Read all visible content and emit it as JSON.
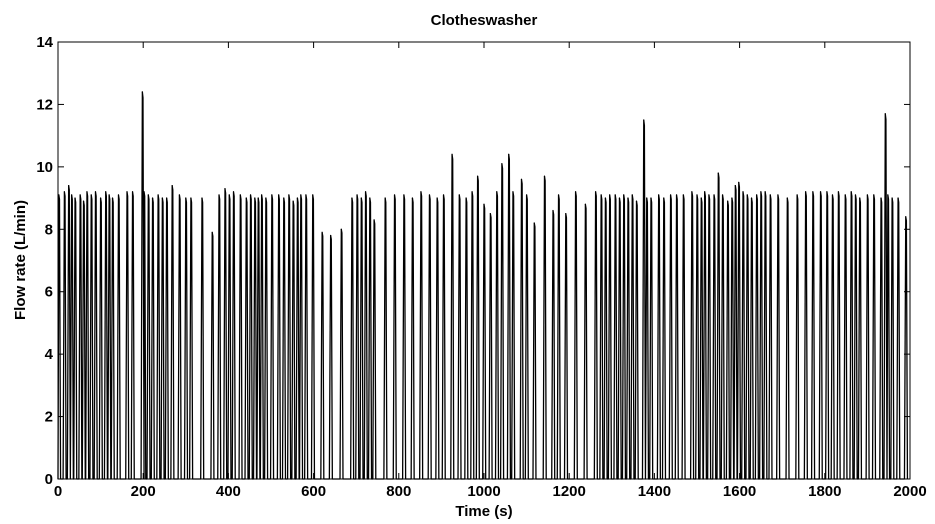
{
  "chart_data": {
    "type": "line",
    "title": "Clotheswasher",
    "xlabel": "Time (s)",
    "ylabel": "Flow rate (L/min)",
    "xlim": [
      0,
      2000
    ],
    "ylim": [
      0,
      14
    ],
    "xticks": [
      0,
      200,
      400,
      600,
      800,
      1000,
      1200,
      1400,
      1600,
      1800,
      2000
    ],
    "yticks": [
      0,
      2,
      4,
      6,
      8,
      10,
      12,
      14
    ],
    "grid": false,
    "legend": "none",
    "series": [
      {
        "color": "#000000",
        "peaks": [
          [
            2,
            9.1
          ],
          [
            15,
            9.2
          ],
          [
            25,
            9.4
          ],
          [
            32,
            9.1
          ],
          [
            40,
            9.0
          ],
          [
            52,
            9.1
          ],
          [
            60,
            8.9
          ],
          [
            68,
            9.2
          ],
          [
            78,
            9.1
          ],
          [
            88,
            9.2
          ],
          [
            100,
            9.0
          ],
          [
            112,
            9.2
          ],
          [
            120,
            9.1
          ],
          [
            128,
            9.0
          ],
          [
            142,
            9.1
          ],
          [
            162,
            9.2
          ],
          [
            175,
            9.2
          ],
          [
            198,
            12.4
          ],
          [
            202,
            9.2
          ],
          [
            212,
            9.1
          ],
          [
            222,
            9.0
          ],
          [
            235,
            9.1
          ],
          [
            245,
            9.0
          ],
          [
            255,
            9.0
          ],
          [
            268,
            9.4
          ],
          [
            285,
            9.1
          ],
          [
            300,
            9.0
          ],
          [
            312,
            9.0
          ],
          [
            338,
            9.0
          ],
          [
            362,
            7.9
          ],
          [
            378,
            9.1
          ],
          [
            392,
            9.3
          ],
          [
            402,
            9.1
          ],
          [
            412,
            9.2
          ],
          [
            428,
            9.1
          ],
          [
            442,
            9.0
          ],
          [
            452,
            9.1
          ],
          [
            462,
            9.0
          ],
          [
            470,
            9.0
          ],
          [
            478,
            9.1
          ],
          [
            488,
            9.0
          ],
          [
            502,
            9.1
          ],
          [
            518,
            9.1
          ],
          [
            530,
            9.0
          ],
          [
            542,
            9.1
          ],
          [
            552,
            8.9
          ],
          [
            562,
            9.0
          ],
          [
            570,
            9.1
          ],
          [
            582,
            9.1
          ],
          [
            598,
            9.1
          ],
          [
            620,
            7.9
          ],
          [
            640,
            7.8
          ],
          [
            665,
            8.0
          ],
          [
            690,
            9.0
          ],
          [
            702,
            9.1
          ],
          [
            712,
            9.0
          ],
          [
            722,
            9.2
          ],
          [
            732,
            9.0
          ],
          [
            742,
            8.3
          ],
          [
            768,
            9.0
          ],
          [
            790,
            9.1
          ],
          [
            812,
            9.1
          ],
          [
            832,
            9.0
          ],
          [
            852,
            9.2
          ],
          [
            872,
            9.1
          ],
          [
            890,
            9.0
          ],
          [
            905,
            9.1
          ],
          [
            925,
            10.4
          ],
          [
            942,
            9.1
          ],
          [
            958,
            9.0
          ],
          [
            972,
            9.2
          ],
          [
            985,
            9.7
          ],
          [
            1000,
            8.8
          ],
          [
            1015,
            8.5
          ],
          [
            1030,
            9.2
          ],
          [
            1042,
            10.1
          ],
          [
            1058,
            10.4
          ],
          [
            1068,
            9.2
          ],
          [
            1088,
            9.6
          ],
          [
            1100,
            9.1
          ],
          [
            1118,
            8.2
          ],
          [
            1142,
            9.7
          ],
          [
            1162,
            8.6
          ],
          [
            1175,
            9.1
          ],
          [
            1192,
            8.5
          ],
          [
            1215,
            9.2
          ],
          [
            1238,
            8.8
          ],
          [
            1262,
            9.2
          ],
          [
            1275,
            9.1
          ],
          [
            1285,
            9.0
          ],
          [
            1295,
            9.1
          ],
          [
            1308,
            9.1
          ],
          [
            1318,
            9.0
          ],
          [
            1328,
            9.1
          ],
          [
            1338,
            9.0
          ],
          [
            1348,
            9.1
          ],
          [
            1358,
            8.9
          ],
          [
            1375,
            11.5
          ],
          [
            1382,
            9.0
          ],
          [
            1392,
            9.0
          ],
          [
            1410,
            9.1
          ],
          [
            1422,
            9.0
          ],
          [
            1438,
            9.1
          ],
          [
            1452,
            9.1
          ],
          [
            1468,
            9.1
          ],
          [
            1488,
            9.2
          ],
          [
            1500,
            9.1
          ],
          [
            1510,
            9.0
          ],
          [
            1518,
            9.2
          ],
          [
            1528,
            9.1
          ],
          [
            1540,
            9.1
          ],
          [
            1550,
            9.8
          ],
          [
            1560,
            9.1
          ],
          [
            1572,
            8.9
          ],
          [
            1582,
            9.0
          ],
          [
            1590,
            9.4
          ],
          [
            1598,
            9.5
          ],
          [
            1608,
            9.2
          ],
          [
            1618,
            9.1
          ],
          [
            1628,
            9.0
          ],
          [
            1640,
            9.1
          ],
          [
            1650,
            9.2
          ],
          [
            1660,
            9.2
          ],
          [
            1672,
            9.1
          ],
          [
            1690,
            9.1
          ],
          [
            1712,
            9.0
          ],
          [
            1735,
            9.1
          ],
          [
            1755,
            9.2
          ],
          [
            1772,
            9.2
          ],
          [
            1790,
            9.2
          ],
          [
            1805,
            9.2
          ],
          [
            1818,
            9.1
          ],
          [
            1832,
            9.2
          ],
          [
            1848,
            9.1
          ],
          [
            1862,
            9.2
          ],
          [
            1872,
            9.1
          ],
          [
            1882,
            9.0
          ],
          [
            1900,
            9.1
          ],
          [
            1915,
            9.1
          ],
          [
            1932,
            9.0
          ],
          [
            1942,
            11.7
          ],
          [
            1948,
            9.1
          ],
          [
            1958,
            9.0
          ],
          [
            1972,
            9.0
          ],
          [
            1990,
            8.4
          ]
        ]
      }
    ]
  }
}
